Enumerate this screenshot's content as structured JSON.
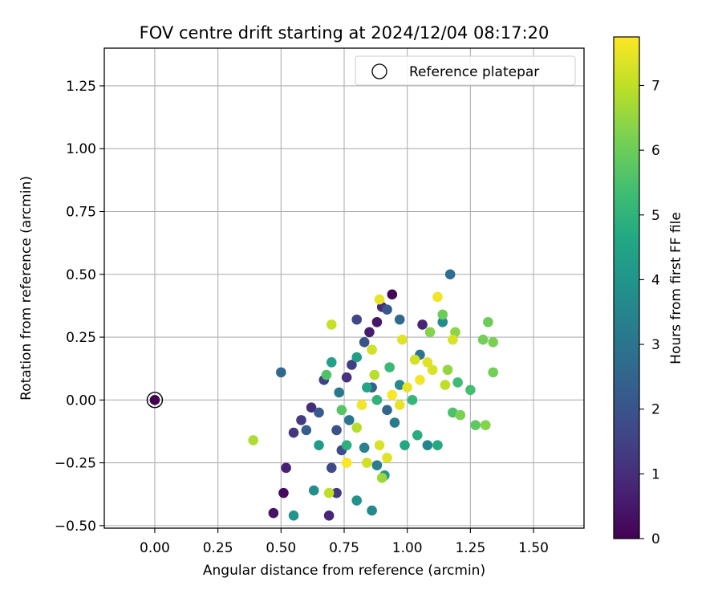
{
  "chart_data": {
    "type": "scatter",
    "title": "FOV centre drift starting at 2024/12/04 08:17:20",
    "xlabel": "Angular distance from reference (arcmin)",
    "ylabel": "Rotation from reference (arcmin)",
    "xlim": [
      -0.2,
      1.7
    ],
    "ylim": [
      -0.51,
      1.4
    ],
    "x_ticks": [
      0.0,
      0.25,
      0.5,
      0.75,
      1.0,
      1.25,
      1.5
    ],
    "x_tick_labels": [
      "0.00",
      "0.25",
      "0.50",
      "0.75",
      "1.00",
      "1.25",
      "1.50"
    ],
    "y_ticks": [
      -0.5,
      -0.25,
      0.0,
      0.25,
      0.5,
      0.75,
      1.0,
      1.25
    ],
    "y_tick_labels": [
      "−0.50",
      "−0.25",
      "0.00",
      "0.25",
      "0.50",
      "0.75",
      "1.00",
      "1.25"
    ],
    "grid": true,
    "legend": {
      "placement": "top-right",
      "label": "Reference platepar"
    },
    "reference_point": {
      "x": 0.0,
      "y": 0.0
    },
    "colorbar": {
      "label": "Hours from first FF file",
      "min": 0,
      "max": 7.75,
      "ticks": [
        0,
        1,
        2,
        3,
        4,
        5,
        6,
        7
      ],
      "tick_labels": [
        "0",
        "1",
        "2",
        "3",
        "4",
        "5",
        "6",
        "7"
      ],
      "colormap": "viridis"
    },
    "series": [
      {
        "points": [
          [
            0.0,
            0.0,
            0.0
          ],
          [
            0.94,
            0.42,
            0.1
          ],
          [
            0.51,
            -0.37,
            0.2
          ],
          [
            0.47,
            -0.45,
            0.4
          ],
          [
            0.52,
            -0.27,
            0.7
          ],
          [
            0.88,
            0.31,
            0.5
          ],
          [
            0.85,
            0.27,
            0.6
          ],
          [
            1.06,
            0.3,
            0.8
          ],
          [
            0.62,
            -0.03,
            1.0
          ],
          [
            0.76,
            0.09,
            1.1
          ],
          [
            0.58,
            -0.08,
            1.3
          ],
          [
            0.55,
            -0.13,
            1.2
          ],
          [
            0.67,
            0.08,
            1.5
          ],
          [
            0.78,
            0.14,
            1.4
          ],
          [
            0.9,
            0.37,
            1.0
          ],
          [
            0.8,
            0.32,
            1.6
          ],
          [
            0.7,
            -0.27,
            1.7
          ],
          [
            0.74,
            -0.2,
            1.8
          ],
          [
            0.72,
            -0.12,
            1.9
          ],
          [
            0.83,
            0.23,
            2.0
          ],
          [
            0.92,
            0.36,
            2.1
          ],
          [
            0.65,
            -0.05,
            2.2
          ],
          [
            0.6,
            -0.12,
            2.3
          ],
          [
            0.86,
            0.05,
            2.4
          ],
          [
            0.92,
            -0.04,
            2.5
          ],
          [
            0.5,
            0.11,
            2.6
          ],
          [
            0.97,
            0.32,
            2.7
          ],
          [
            1.17,
            0.5,
            2.8
          ],
          [
            1.05,
            0.18,
            2.9
          ],
          [
            0.77,
            -0.08,
            3.0
          ],
          [
            0.73,
            0.03,
            3.1
          ],
          [
            0.95,
            -0.09,
            3.2
          ],
          [
            0.88,
            -0.26,
            3.3
          ],
          [
            0.83,
            -0.19,
            3.4
          ],
          [
            1.08,
            -0.18,
            3.5
          ],
          [
            0.97,
            0.06,
            3.6
          ],
          [
            1.14,
            0.31,
            3.7
          ],
          [
            0.63,
            -0.36,
            3.8
          ],
          [
            0.55,
            -0.46,
            4.0
          ],
          [
            0.69,
            -0.46,
            0.8
          ],
          [
            0.72,
            -0.37,
            1.2
          ],
          [
            0.8,
            -0.4,
            3.9
          ],
          [
            0.86,
            -0.44,
            3.6
          ],
          [
            0.91,
            -0.3,
            4.1
          ],
          [
            0.65,
            -0.18,
            4.2
          ],
          [
            0.8,
            0.17,
            4.3
          ],
          [
            0.7,
            0.15,
            4.4
          ],
          [
            0.84,
            0.05,
            4.5
          ],
          [
            0.99,
            -0.18,
            4.6
          ],
          [
            1.12,
            -0.18,
            4.7
          ],
          [
            1.04,
            -0.14,
            4.8
          ],
          [
            0.76,
            -0.18,
            4.9
          ],
          [
            0.88,
            0.0,
            5.0
          ],
          [
            1.02,
            0.0,
            5.1
          ],
          [
            0.93,
            0.13,
            5.2
          ],
          [
            1.2,
            0.07,
            5.3
          ],
          [
            1.25,
            0.04,
            5.4
          ],
          [
            1.18,
            -0.05,
            5.5
          ],
          [
            0.68,
            0.1,
            5.6
          ],
          [
            0.74,
            -0.04,
            5.7
          ],
          [
            1.14,
            0.34,
            6.0
          ],
          [
            1.3,
            0.24,
            6.1
          ],
          [
            1.34,
            0.23,
            6.2
          ],
          [
            1.32,
            0.31,
            6.0
          ],
          [
            1.34,
            0.11,
            6.1
          ],
          [
            1.21,
            -0.06,
            6.2
          ],
          [
            1.31,
            -0.1,
            6.3
          ],
          [
            1.27,
            -0.1,
            5.8
          ],
          [
            1.19,
            0.27,
            6.4
          ],
          [
            1.09,
            0.27,
            6.3
          ],
          [
            1.16,
            0.12,
            6.5
          ],
          [
            0.9,
            -0.31,
            6.6
          ],
          [
            0.39,
            -0.16,
            6.8
          ],
          [
            0.69,
            -0.37,
            7.0
          ],
          [
            0.7,
            0.3,
            7.1
          ],
          [
            0.84,
            -0.25,
            7.2
          ],
          [
            1.12,
            0.41,
            7.6
          ],
          [
            0.89,
            0.4,
            7.5
          ],
          [
            0.98,
            0.24,
            7.4
          ],
          [
            1.18,
            0.24,
            7.3
          ],
          [
            0.86,
            0.2,
            7.2
          ],
          [
            1.0,
            0.05,
            7.5
          ],
          [
            1.05,
            0.08,
            7.6
          ],
          [
            1.08,
            0.15,
            7.4
          ],
          [
            0.94,
            0.02,
            7.7
          ],
          [
            0.97,
            -0.02,
            7.5
          ],
          [
            1.1,
            0.12,
            7.3
          ],
          [
            0.82,
            -0.02,
            7.6
          ],
          [
            0.76,
            -0.25,
            7.7
          ],
          [
            0.92,
            -0.23,
            7.4
          ],
          [
            0.89,
            -0.18,
            7.3
          ],
          [
            1.03,
            0.16,
            7.2
          ],
          [
            1.15,
            0.06,
            7.0
          ],
          [
            0.8,
            -0.11,
            6.9
          ],
          [
            0.87,
            0.1,
            6.9
          ]
        ]
      }
    ]
  }
}
